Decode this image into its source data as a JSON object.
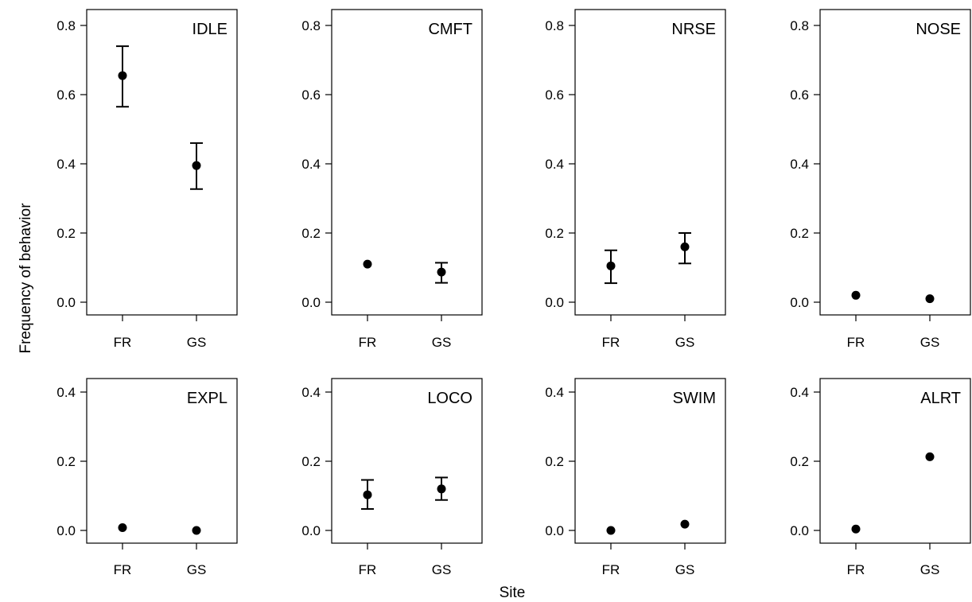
{
  "figure": {
    "xlabel": "Site",
    "ylabel": "Frequency of behavior"
  },
  "chart_data": [
    {
      "type": "scatter",
      "title": "IDLE",
      "categories": [
        "FR",
        "GS"
      ],
      "values": [
        0.655,
        0.395
      ],
      "error_bars": [
        [
          0.565,
          0.74
        ],
        [
          0.327,
          0.46
        ]
      ],
      "yticks": [
        "0.0",
        "0.2",
        "0.4",
        "0.6",
        "0.8"
      ],
      "ylim": [
        0,
        0.8
      ]
    },
    {
      "type": "scatter",
      "title": "CMFT",
      "categories": [
        "FR",
        "GS"
      ],
      "values": [
        0.11,
        0.087
      ],
      "error_bars": [
        null,
        [
          0.056,
          0.114
        ]
      ],
      "yticks": [
        "0.0",
        "0.2",
        "0.4",
        "0.6",
        "0.8"
      ],
      "ylim": [
        0,
        0.8
      ]
    },
    {
      "type": "scatter",
      "title": "NRSE",
      "categories": [
        "FR",
        "GS"
      ],
      "values": [
        0.105,
        0.16
      ],
      "error_bars": [
        [
          0.055,
          0.15
        ],
        [
          0.112,
          0.2
        ]
      ],
      "yticks": [
        "0.0",
        "0.2",
        "0.4",
        "0.6",
        "0.8"
      ],
      "ylim": [
        0,
        0.8
      ]
    },
    {
      "type": "scatter",
      "title": "NOSE",
      "categories": [
        "FR",
        "GS"
      ],
      "values": [
        0.02,
        0.01
      ],
      "error_bars": [
        null,
        null
      ],
      "yticks": [
        "0.0",
        "0.2",
        "0.4",
        "0.6",
        "0.8"
      ],
      "ylim": [
        0,
        0.8
      ]
    },
    {
      "type": "scatter",
      "title": "EXPL",
      "categories": [
        "FR",
        "GS"
      ],
      "values": [
        0.008,
        0.0
      ],
      "error_bars": [
        null,
        null
      ],
      "yticks": [
        "0.0",
        "0.2",
        "0.4"
      ],
      "ylim": [
        0,
        0.4
      ]
    },
    {
      "type": "scatter",
      "title": "LOCO",
      "categories": [
        "FR",
        "GS"
      ],
      "values": [
        0.103,
        0.12
      ],
      "error_bars": [
        [
          0.062,
          0.146
        ],
        [
          0.088,
          0.153
        ]
      ],
      "yticks": [
        "0.0",
        "0.2",
        "0.4"
      ],
      "ylim": [
        0,
        0.4
      ]
    },
    {
      "type": "scatter",
      "title": "SWIM",
      "categories": [
        "FR",
        "GS"
      ],
      "values": [
        0.0,
        0.018
      ],
      "error_bars": [
        null,
        null
      ],
      "yticks": [
        "0.0",
        "0.2",
        "0.4"
      ],
      "ylim": [
        0,
        0.4
      ]
    },
    {
      "type": "scatter",
      "title": "ALRT",
      "categories": [
        "FR",
        "GS"
      ],
      "values": [
        0.004,
        0.213
      ],
      "error_bars": [
        null,
        null
      ],
      "yticks": [
        "0.0",
        "0.2",
        "0.4"
      ],
      "ylim": [
        0,
        0.4
      ]
    }
  ]
}
